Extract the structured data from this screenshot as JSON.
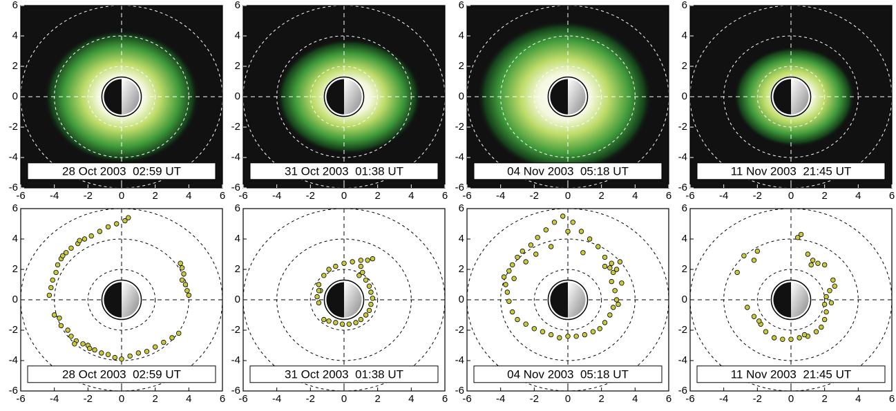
{
  "chart_data": [
    {
      "type": "image",
      "label": "28 Oct 2003  02:59 UT",
      "xlim": [
        -6,
        6
      ],
      "ylim": [
        -6,
        6
      ],
      "xticks": [
        -6,
        -4,
        -2,
        0,
        2,
        4,
        6
      ],
      "yticks": [
        -6,
        -4,
        -2,
        0,
        2,
        4,
        6
      ],
      "rings": [
        2,
        4,
        6
      ]
    },
    {
      "type": "image",
      "label": "31 Oct 2003  01:38 UT",
      "xlim": [
        -6,
        6
      ],
      "ylim": [
        -6,
        6
      ],
      "xticks": [
        -6,
        -4,
        -2,
        0,
        2,
        4,
        6
      ],
      "yticks": [
        -6,
        -4,
        -2,
        0,
        2,
        4,
        6
      ],
      "rings": [
        2,
        4,
        6
      ]
    },
    {
      "type": "image",
      "label": "04 Nov 2003  05:18 UT",
      "xlim": [
        -6,
        6
      ],
      "ylim": [
        -6,
        6
      ],
      "xticks": [
        -6,
        -4,
        -2,
        0,
        2,
        4,
        6
      ],
      "yticks": [
        -6,
        -4,
        -2,
        0,
        2,
        4,
        6
      ],
      "rings": [
        2,
        4,
        6
      ]
    },
    {
      "type": "image",
      "label": "11 Nov 2003  21:45 UT",
      "xlim": [
        -6,
        6
      ],
      "ylim": [
        -6,
        6
      ],
      "xticks": [
        -6,
        -4,
        -2,
        0,
        2,
        4,
        6
      ],
      "yticks": [
        -6,
        -4,
        -2,
        0,
        2,
        4,
        6
      ],
      "rings": [
        2,
        4,
        6
      ]
    },
    {
      "type": "scatter",
      "label": "28 Oct 2003  02:59 UT",
      "xlim": [
        -6,
        6
      ],
      "ylim": [
        -6,
        6
      ],
      "xticks": [
        -6,
        -4,
        -2,
        0,
        2,
        4,
        6
      ],
      "yticks": [
        -6,
        -4,
        -2,
        0,
        2,
        4,
        6
      ],
      "rings": [
        2,
        4,
        6
      ],
      "color": "#c9c93a",
      "points": [
        [
          -4.3,
          0.3
        ],
        [
          -4.2,
          0.8
        ],
        [
          -4.1,
          1.3
        ],
        [
          -3.9,
          1.8
        ],
        [
          -3.8,
          2.3
        ],
        [
          -3.6,
          2.7
        ],
        [
          -3.3,
          3.1
        ],
        [
          -3,
          3.4
        ],
        [
          -2.6,
          3.7
        ],
        [
          -2.2,
          4
        ],
        [
          -1.8,
          4.2
        ],
        [
          -1.3,
          4.5
        ],
        [
          -0.8,
          4.8
        ],
        [
          -0.3,
          5
        ],
        [
          0.2,
          5.2
        ],
        [
          0.4,
          5.4
        ],
        [
          -2.5,
          3.9
        ],
        [
          -3.5,
          2.9
        ],
        [
          3.5,
          2.4
        ],
        [
          3.6,
          2.1
        ],
        [
          3.7,
          1.7
        ],
        [
          3.6,
          1.3
        ],
        [
          3.8,
          1
        ],
        [
          3.9,
          0.6
        ],
        [
          4,
          0.3
        ],
        [
          -4,
          -1
        ],
        [
          -3.7,
          -1.2
        ],
        [
          -3.6,
          -1.7
        ],
        [
          -3.2,
          -2
        ],
        [
          -3,
          -2.4
        ],
        [
          -2.7,
          -2.7
        ],
        [
          -2.3,
          -2.9
        ],
        [
          -2,
          -3
        ],
        [
          -1.6,
          -3.3
        ],
        [
          -1.2,
          -3.5
        ],
        [
          -0.8,
          -3.6
        ],
        [
          -0.4,
          -3.8
        ],
        [
          0,
          -3.9
        ],
        [
          0.5,
          -3.7
        ],
        [
          1,
          -3.5
        ],
        [
          1.5,
          -3.4
        ],
        [
          2,
          -3.1
        ],
        [
          2.5,
          -2.8
        ],
        [
          3,
          -2.5
        ],
        [
          3.4,
          -2.2
        ],
        [
          -2.8,
          -2.9
        ],
        [
          -1.9,
          -3.2
        ]
      ]
    },
    {
      "type": "scatter",
      "label": "31 Oct 2003  01:38 UT",
      "xlim": [
        -6,
        6
      ],
      "ylim": [
        -6,
        6
      ],
      "xticks": [
        -6,
        -4,
        -2,
        0,
        2,
        4,
        6
      ],
      "yticks": [
        -6,
        -4,
        -2,
        0,
        2,
        4,
        6
      ],
      "rings": [
        2,
        4,
        6
      ],
      "color": "#c9c93a",
      "points": [
        [
          -1.5,
          1
        ],
        [
          -1.4,
          0.6
        ],
        [
          -1.6,
          0.2
        ],
        [
          -1.5,
          -0.2
        ],
        [
          -1.5,
          0.6
        ],
        [
          -1.2,
          1.6
        ],
        [
          -0.9,
          2
        ],
        [
          -0.5,
          2.2
        ],
        [
          0,
          2.4
        ],
        [
          0.5,
          2.5
        ],
        [
          1,
          2.6
        ],
        [
          1.4,
          2.6
        ],
        [
          1.7,
          2.7
        ],
        [
          1,
          2.2
        ],
        [
          1.1,
          1.8
        ],
        [
          1.3,
          1.3
        ],
        [
          1.5,
          0.9
        ],
        [
          1.6,
          0.5
        ],
        [
          1.7,
          0.1
        ],
        [
          1.6,
          -0.3
        ],
        [
          1.5,
          -0.7
        ],
        [
          1.3,
          -1
        ],
        [
          1,
          -1.3
        ],
        [
          0.7,
          -1.5
        ],
        [
          0.3,
          -1.6
        ],
        [
          -0.1,
          -1.6
        ],
        [
          -0.5,
          -1.5
        ],
        [
          -0.9,
          -1.4
        ],
        [
          -1.2,
          -1.3
        ],
        [
          0.9,
          1.6
        ]
      ]
    },
    {
      "type": "scatter",
      "label": "04 Nov 2003  05:18 UT",
      "xlim": [
        -6,
        6
      ],
      "ylim": [
        -6,
        6
      ],
      "xticks": [
        -6,
        -4,
        -2,
        0,
        2,
        4,
        6
      ],
      "yticks": [
        -6,
        -4,
        -2,
        0,
        2,
        4,
        6
      ],
      "rings": [
        2,
        4,
        6
      ],
      "color": "#c9c93a",
      "points": [
        [
          -3.8,
          1.5
        ],
        [
          -3.7,
          1
        ],
        [
          -3.6,
          0.5
        ],
        [
          -3.5,
          1.9
        ],
        [
          -3.3,
          2.3
        ],
        [
          -3,
          2.8
        ],
        [
          -2.7,
          3.2
        ],
        [
          -2.2,
          3.6
        ],
        [
          -1.8,
          4.1
        ],
        [
          -1.3,
          4.6
        ],
        [
          -0.8,
          5.1
        ],
        [
          -0.3,
          5.5
        ],
        [
          0.3,
          5.1
        ],
        [
          0.8,
          4.5
        ],
        [
          1.3,
          4
        ],
        [
          1.8,
          3.5
        ],
        [
          2.2,
          2.2
        ],
        [
          2.5,
          2.1
        ],
        [
          2.7,
          1.8
        ],
        [
          2.9,
          2
        ],
        [
          3.1,
          2.5
        ],
        [
          2.6,
          1.2
        ],
        [
          2.8,
          0.6
        ],
        [
          2.9,
          0
        ],
        [
          2.7,
          -0.5
        ],
        [
          2.5,
          -1
        ],
        [
          2.2,
          -1.5
        ],
        [
          1.9,
          -1.9
        ],
        [
          1.5,
          -2.1
        ],
        [
          1,
          -2.3
        ],
        [
          0.5,
          -2.4
        ],
        [
          0,
          -2.4
        ],
        [
          -0.5,
          -2.5
        ],
        [
          -1,
          -2.3
        ],
        [
          -1.5,
          -2.1
        ],
        [
          -2,
          -1.9
        ],
        [
          -2.5,
          -1.6
        ],
        [
          -3,
          -1.3
        ],
        [
          -3.3,
          -0.8
        ],
        [
          -3.5,
          -0.1
        ],
        [
          -2.5,
          2.5
        ],
        [
          -1.9,
          3
        ],
        [
          -1,
          3.5
        ],
        [
          0,
          4.5
        ],
        [
          2.6,
          2.4
        ],
        [
          3.2,
          1.1
        ],
        [
          3,
          -0.3
        ],
        [
          -3.2,
          1.4
        ],
        [
          2.2,
          2.8
        ],
        [
          0.9,
          3.1
        ]
      ]
    },
    {
      "type": "scatter",
      "label": "11 Nov 2003  21:45 UT",
      "xlim": [
        -6,
        6
      ],
      "ylim": [
        -6,
        6
      ],
      "xticks": [
        -6,
        -4,
        -2,
        0,
        2,
        4,
        6
      ],
      "yticks": [
        -6,
        -4,
        -2,
        0,
        2,
        4,
        6
      ],
      "rings": [
        2,
        4,
        6
      ],
      "color": "#c9c93a",
      "points": [
        [
          -3.2,
          1.8
        ],
        [
          -2.8,
          2.9
        ],
        [
          -2,
          3.2
        ],
        [
          -2.2,
          2.6
        ],
        [
          0.4,
          4.1
        ],
        [
          0.6,
          4.3
        ],
        [
          1,
          3
        ],
        [
          1.3,
          2.6
        ],
        [
          1.6,
          2.4
        ],
        [
          2,
          2.3
        ],
        [
          1.2,
          2.3
        ],
        [
          2.5,
          1.3
        ],
        [
          2.6,
          0.9
        ],
        [
          2.3,
          0.6
        ],
        [
          2.1,
          0.2
        ],
        [
          2,
          -0.3
        ],
        [
          2.1,
          -0.8
        ],
        [
          2,
          -1.3
        ],
        [
          1.8,
          -1.8
        ],
        [
          1.5,
          -2.1
        ],
        [
          1,
          -2.4
        ],
        [
          0.5,
          -2.5
        ],
        [
          0,
          -2.6
        ],
        [
          -0.5,
          -2.6
        ],
        [
          -1,
          -2.5
        ],
        [
          -1.5,
          -2.1
        ],
        [
          -1.8,
          -1.6
        ],
        [
          -2.2,
          -1.1
        ],
        [
          -2.6,
          -0.5
        ],
        [
          -1.9,
          -1.4
        ],
        [
          2.4,
          -0.2
        ],
        [
          0.8,
          -2.3
        ]
      ]
    }
  ]
}
